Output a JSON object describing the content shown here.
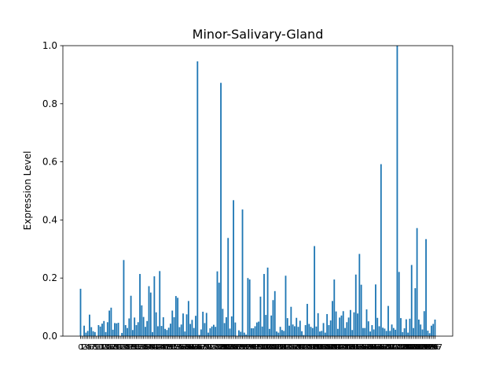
{
  "chart_data": {
    "type": "bar",
    "title": "Minor-Salivary-Gland",
    "xlabel": "",
    "ylabel": "Expression Level",
    "ylim": [
      0,
      1.0
    ],
    "yticks": [
      "0.0",
      "0.2",
      "0.4",
      "0.6",
      "0.8",
      "1.0"
    ],
    "grid": false,
    "bar_color": "#1f77b4",
    "values": [
      0.163,
      0.0,
      0.036,
      0.012,
      0.018,
      0.074,
      0.031,
      0.017,
      0.014,
      0.0,
      0.038,
      0.033,
      0.043,
      0.052,
      0.014,
      0.048,
      0.088,
      0.098,
      0.022,
      0.045,
      0.044,
      0.046,
      0.0,
      0.011,
      0.262,
      0.038,
      0.028,
      0.061,
      0.139,
      0.021,
      0.064,
      0.038,
      0.048,
      0.214,
      0.106,
      0.066,
      0.032,
      0.052,
      0.172,
      0.15,
      0.014,
      0.206,
      0.082,
      0.034,
      0.224,
      0.035,
      0.065,
      0.025,
      0.021,
      0.029,
      0.043,
      0.088,
      0.065,
      0.138,
      0.132,
      0.031,
      0.04,
      0.078,
      0.016,
      0.075,
      0.121,
      0.042,
      0.056,
      0.028,
      0.07,
      0.946,
      0.004,
      0.023,
      0.084,
      0.045,
      0.08,
      0.012,
      0.027,
      0.033,
      0.039,
      0.032,
      0.223,
      0.184,
      0.872,
      0.094,
      0.045,
      0.065,
      0.338,
      0.026,
      0.068,
      0.468,
      0.047,
      0.0,
      0.02,
      0.015,
      0.436,
      0.012,
      0.005,
      0.2,
      0.195,
      0.027,
      0.027,
      0.034,
      0.047,
      0.05,
      0.136,
      0.033,
      0.214,
      0.073,
      0.236,
      0.025,
      0.071,
      0.124,
      0.155,
      0.016,
      0.012,
      0.032,
      0.021,
      0.018,
      0.208,
      0.062,
      0.036,
      0.101,
      0.04,
      0.034,
      0.063,
      0.032,
      0.053,
      0.017,
      0.004,
      0.038,
      0.111,
      0.042,
      0.032,
      0.028,
      0.31,
      0.033,
      0.079,
      0.016,
      0.018,
      0.045,
      0.012,
      0.076,
      0.038,
      0.054,
      0.121,
      0.195,
      0.085,
      0.025,
      0.064,
      0.071,
      0.086,
      0.028,
      0.048,
      0.064,
      0.09,
      0.021,
      0.082,
      0.212,
      0.078,
      0.283,
      0.177,
      0.028,
      0.028,
      0.092,
      0.051,
      0.016,
      0.038,
      0.023,
      0.178,
      0.063,
      0.034,
      0.592,
      0.029,
      0.026,
      0.018,
      0.104,
      0.018,
      0.04,
      0.028,
      0.022,
      1.0,
      0.221,
      0.062,
      0.014,
      0.027,
      0.058,
      0.012,
      0.06,
      0.245,
      0.028,
      0.165,
      0.372,
      0.057,
      0.04,
      0.023,
      0.086,
      0.334,
      0.019,
      0.01,
      0.036,
      0.042,
      0.057
    ]
  }
}
